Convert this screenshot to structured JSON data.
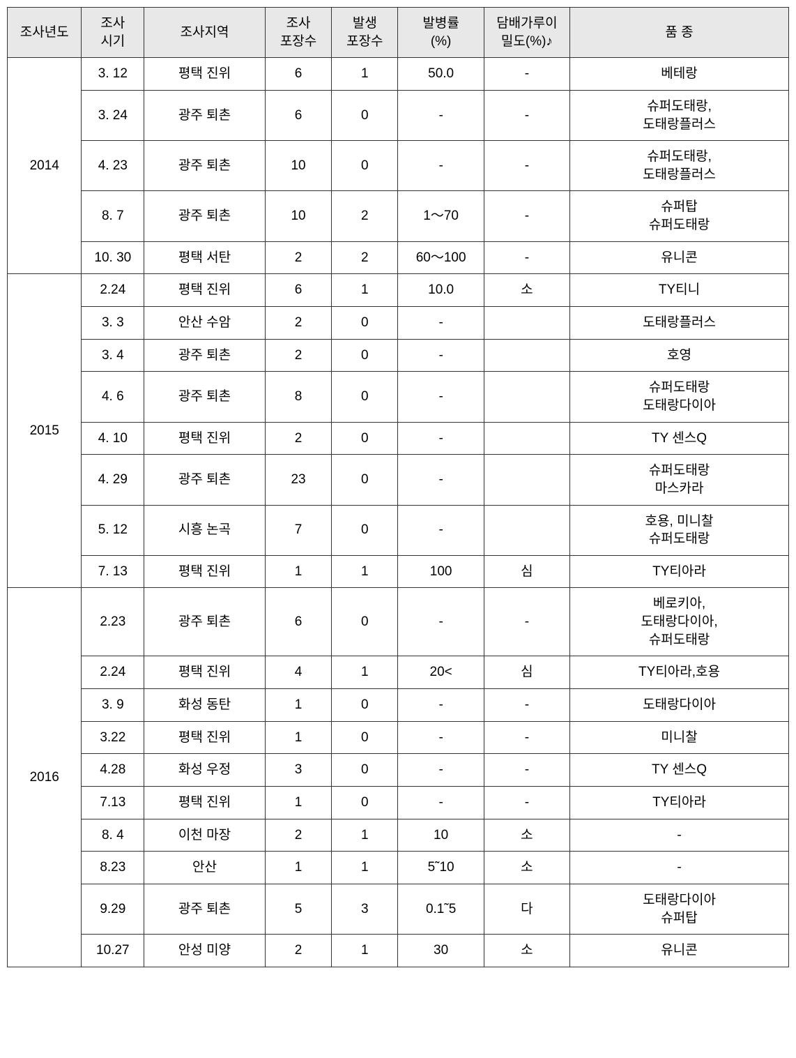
{
  "headers": {
    "year": "조사년도",
    "period": "조사\n시기",
    "region": "조사지역",
    "count": "조사\n포장수",
    "occur": "발생\n포장수",
    "rate": "발병률\n(%)",
    "density": "담배가루이\n밀도(%)♪",
    "variety": "품  종"
  },
  "groups": [
    {
      "year": "2014",
      "rows": [
        {
          "period": "3. 12",
          "region": "평택  진위",
          "count": "6",
          "occur": "1",
          "rate": "50.0",
          "density": "-",
          "variety": "베테랑"
        },
        {
          "period": "3. 24",
          "region": "광주  퇴촌",
          "count": "6",
          "occur": "0",
          "rate": "-",
          "density": "-",
          "variety": "슈퍼도태랑,\n도태랑플러스"
        },
        {
          "period": "4. 23",
          "region": "광주  퇴촌",
          "count": "10",
          "occur": "0",
          "rate": "-",
          "density": "-",
          "variety": "슈퍼도태랑,\n도태랑플러스"
        },
        {
          "period": "8.   7",
          "region": "광주  퇴촌",
          "count": "10",
          "occur": "2",
          "rate": "1～70",
          "density": "-",
          "variety": "슈퍼탑\n슈퍼도태랑"
        },
        {
          "period": "10. 30",
          "region": "평택  서탄",
          "count": "2",
          "occur": "2",
          "rate": "60～100",
          "density": "-",
          "variety": "유니콘"
        }
      ]
    },
    {
      "year": "2015",
      "rows": [
        {
          "period": "2.24",
          "region": "평택  진위",
          "count": "6",
          "occur": "1",
          "rate": "10.0",
          "density": "소",
          "variety": "TY티니"
        },
        {
          "period": "3. 3",
          "region": "안산  수암",
          "count": "2",
          "occur": "0",
          "rate": "-",
          "density": "",
          "variety": "도태랑플러스"
        },
        {
          "period": "3. 4",
          "region": "광주  퇴촌",
          "count": "2",
          "occur": "0",
          "rate": "-",
          "density": "",
          "variety": "호영"
        },
        {
          "period": "4. 6",
          "region": "광주  퇴촌",
          "count": "8",
          "occur": "0",
          "rate": "-",
          "density": "",
          "variety": "슈퍼도태랑\n도태랑다이아"
        },
        {
          "period": "4. 10",
          "region": "평택  진위",
          "count": "2",
          "occur": "0",
          "rate": "-",
          "density": "",
          "variety": "TY 센스Q"
        },
        {
          "period": "4. 29",
          "region": "광주  퇴촌",
          "count": "23",
          "occur": "0",
          "rate": "-",
          "density": "",
          "variety": "슈퍼도태랑\n마스카라"
        },
        {
          "period": "5. 12",
          "region": "시흥  논곡",
          "count": "7",
          "occur": "0",
          "rate": "-",
          "density": "",
          "variety": "호용, 미니찰\n슈퍼도태랑"
        },
        {
          "period": "7. 13",
          "region": "평택  진위",
          "count": "1",
          "occur": "1",
          "rate": "100",
          "density": "심",
          "variety": "TY티아라"
        }
      ]
    },
    {
      "year": "2016",
      "rows": [
        {
          "period": "2.23",
          "region": "광주  퇴촌",
          "count": "6",
          "occur": "0",
          "rate": "-",
          "density": "-",
          "variety": "베로키아,\n도태랑다이아,\n슈퍼도태랑"
        },
        {
          "period": "2.24",
          "region": "평택  진위",
          "count": "4",
          "occur": "1",
          "rate": "20<",
          "density": "심",
          "variety": "TY티아라,호용"
        },
        {
          "period": "3. 9",
          "region": "화성  동탄",
          "count": "1",
          "occur": "0",
          "rate": "-",
          "density": "-",
          "variety": "도태랑다이아"
        },
        {
          "period": "3.22",
          "region": "평택  진위",
          "count": "1",
          "occur": "0",
          "rate": "-",
          "density": "-",
          "variety": "미니찰"
        },
        {
          "period": "4.28",
          "region": "화성  우정",
          "count": "3",
          "occur": "0",
          "rate": "-",
          "density": "-",
          "variety": "TY 센스Q"
        },
        {
          "period": "7.13",
          "region": "평택  진위",
          "count": "1",
          "occur": "0",
          "rate": "-",
          "density": "-",
          "variety": "TY티아라"
        },
        {
          "period": "8. 4",
          "region": "이천  마장",
          "count": "2",
          "occur": "1",
          "rate": "10",
          "density": "소",
          "variety": "-"
        },
        {
          "period": "8.23",
          "region": "안산",
          "count": "1",
          "occur": "1",
          "rate": "5˜10",
          "density": "소",
          "variety": "-"
        },
        {
          "period": "9.29",
          "region": "광주  퇴촌",
          "count": "5",
          "occur": "3",
          "rate": "0.1˜5",
          "density": "다",
          "variety": "도태랑다이아\n슈퍼탑"
        },
        {
          "period": "10.27",
          "region": "안성  미양",
          "count": "2",
          "occur": "1",
          "rate": "30",
          "density": "소",
          "variety": "유니콘"
        }
      ]
    }
  ]
}
